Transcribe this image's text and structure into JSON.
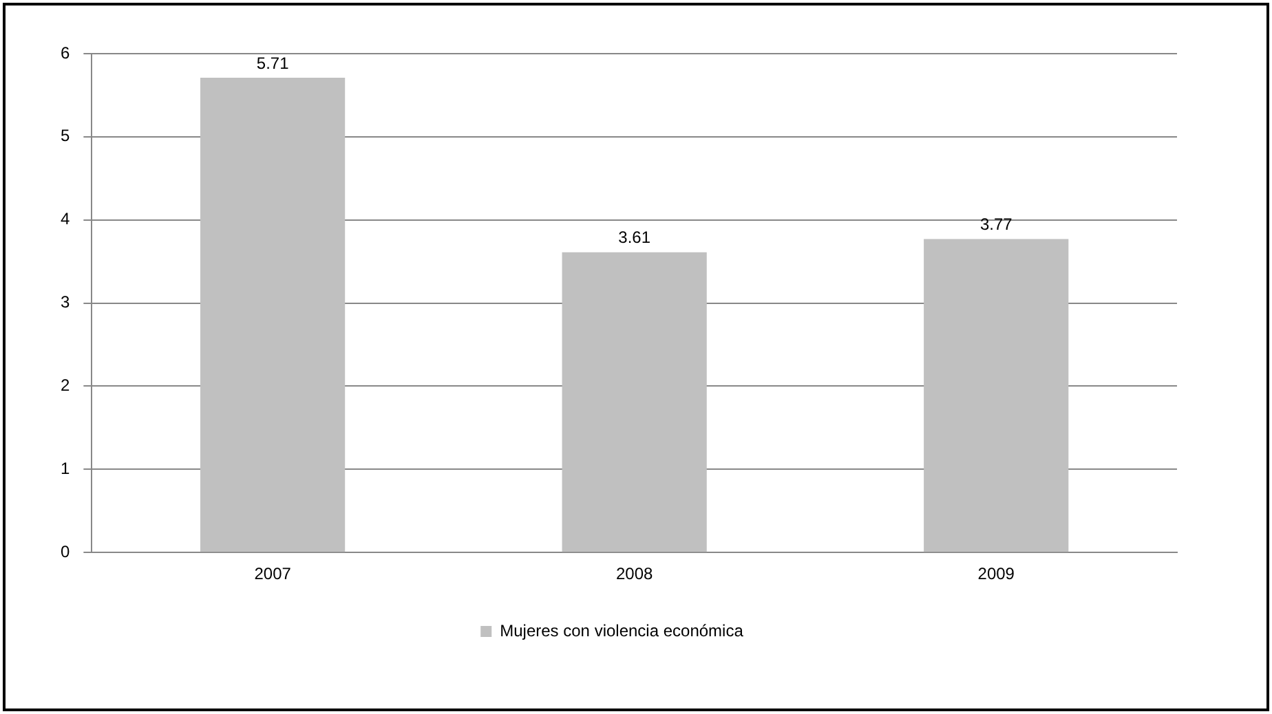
{
  "chart_data": {
    "type": "bar",
    "categories": [
      "2007",
      "2008",
      "2009"
    ],
    "series": [
      {
        "name": "Mujeres con violencia económica",
        "color": "#c0c0c0",
        "values": [
          5.71,
          3.61,
          3.77
        ]
      }
    ],
    "ylim": [
      0,
      6
    ],
    "yticks": [
      0,
      1,
      2,
      3,
      4,
      5,
      6
    ],
    "grid": "y",
    "legend": "bottom",
    "data_labels": true
  }
}
